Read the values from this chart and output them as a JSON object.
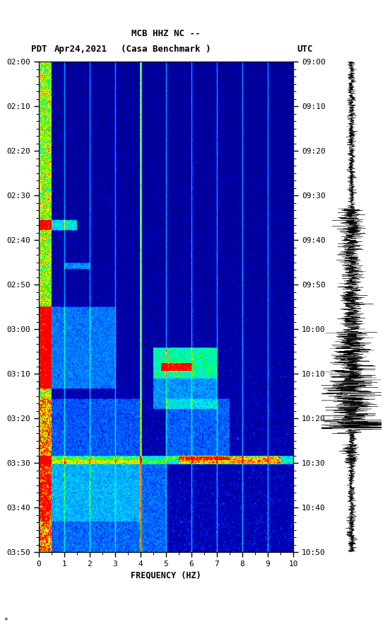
{
  "title_line1": "MCB HHZ NC --",
  "title_line2": "(Casa Benchmark )",
  "pdt_label": "PDT",
  "date_label": "Apr24,2021",
  "utc_label": "UTC",
  "left_times": [
    "02:00",
    "02:10",
    "02:20",
    "02:30",
    "02:40",
    "02:50",
    "03:00",
    "03:10",
    "03:20",
    "03:30",
    "03:40",
    "03:50"
  ],
  "right_times": [
    "09:00",
    "09:10",
    "09:20",
    "09:30",
    "09:40",
    "09:50",
    "10:00",
    "10:10",
    "10:20",
    "10:30",
    "10:40",
    "10:50"
  ],
  "freq_min": 0,
  "freq_max": 10,
  "freq_ticks": [
    0,
    1,
    2,
    3,
    4,
    5,
    6,
    7,
    8,
    9,
    10
  ],
  "freq_label": "FREQUENCY (HZ)",
  "vertical_lines_freq": [
    1.0,
    2.0,
    3.0,
    4.0,
    5.0,
    6.0,
    7.0,
    8.0,
    9.0
  ],
  "bright_line_freq": 4.0,
  "background_color": "#ffffff",
  "spectrogram_bg": "#00008B",
  "fig_width": 5.52,
  "fig_height": 8.93
}
